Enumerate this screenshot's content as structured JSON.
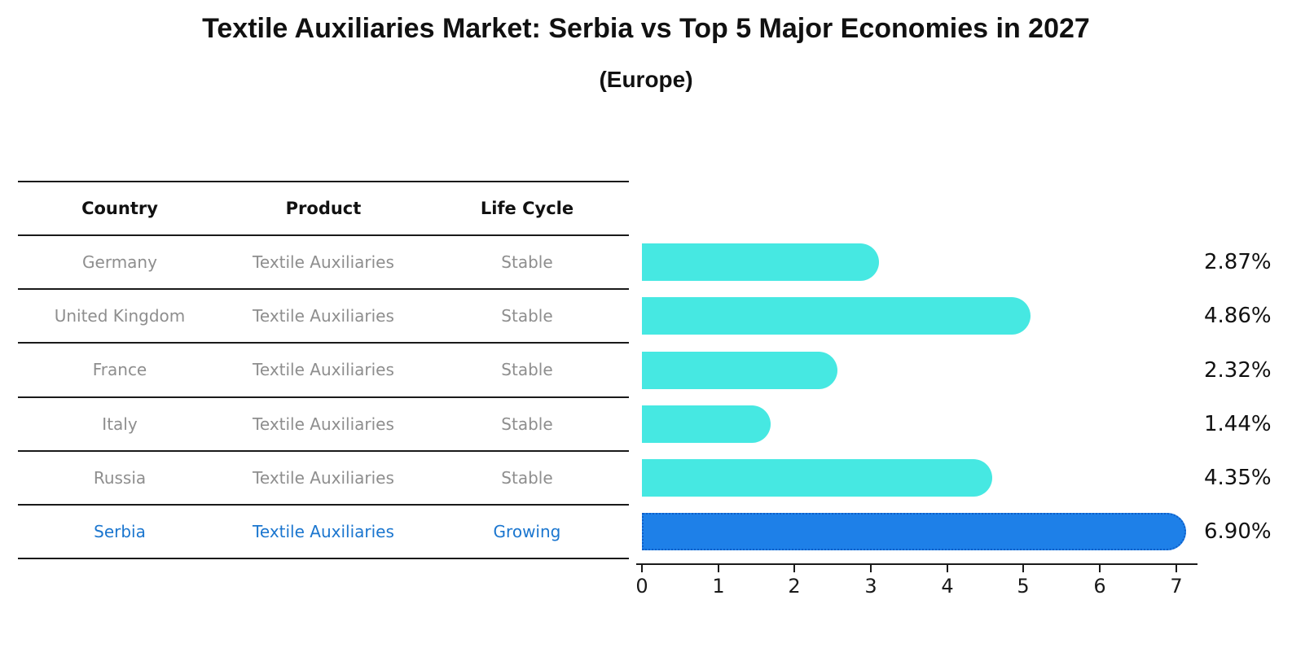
{
  "title": "Textile Auxiliaries Market: Serbia vs Top 5 Major Economies in 2027",
  "subtitle": "(Europe)",
  "colors": {
    "bar_default": "#46e8e2",
    "bar_highlight_fill": "#1e80e8",
    "bar_highlight_border": "#0f5fc8",
    "table_text_muted": "#8e8e8e",
    "highlight_text": "#1b76cf",
    "axis_text": "#1a1a1a"
  },
  "table": {
    "headers": [
      "Country",
      "Product",
      "Life Cycle"
    ],
    "rows": [
      {
        "country": "Germany",
        "product": "Textile Auxiliaries",
        "life_cycle": "Stable",
        "highlighted": false
      },
      {
        "country": "United Kingdom",
        "product": "Textile Auxiliaries",
        "life_cycle": "Stable",
        "highlighted": false
      },
      {
        "country": "France",
        "product": "Textile Auxiliaries",
        "life_cycle": "Stable",
        "highlighted": false
      },
      {
        "country": "Italy",
        "product": "Textile Auxiliaries",
        "life_cycle": "Stable",
        "highlighted": false
      },
      {
        "country": "Russia",
        "product": "Textile Auxiliaries",
        "life_cycle": "Stable",
        "highlighted": false
      },
      {
        "country": "Serbia",
        "product": "Textile Auxiliaries",
        "life_cycle": "Growing",
        "highlighted": true
      }
    ]
  },
  "chart_data": {
    "type": "bar",
    "orientation": "horizontal",
    "title": "Textile Auxiliaries Market: Serbia vs Top 5 Major Economies in 2027 (Europe)",
    "categories": [
      "Germany",
      "United Kingdom",
      "France",
      "Italy",
      "Russia",
      "Serbia"
    ],
    "values": [
      2.87,
      4.86,
      2.32,
      1.44,
      4.35,
      6.9
    ],
    "value_labels": [
      "2.87%",
      "4.86%",
      "2.32%",
      "1.44%",
      "4.35%",
      "6.90%"
    ],
    "highlighted_category": "Serbia",
    "x_ticks": [
      "0",
      "1",
      "2",
      "3",
      "4",
      "5",
      "6",
      "7"
    ],
    "xlim": [
      0,
      7.3
    ],
    "xlabel": "",
    "ylabel": "",
    "grid": false,
    "legend": false,
    "unit": "percent"
  }
}
